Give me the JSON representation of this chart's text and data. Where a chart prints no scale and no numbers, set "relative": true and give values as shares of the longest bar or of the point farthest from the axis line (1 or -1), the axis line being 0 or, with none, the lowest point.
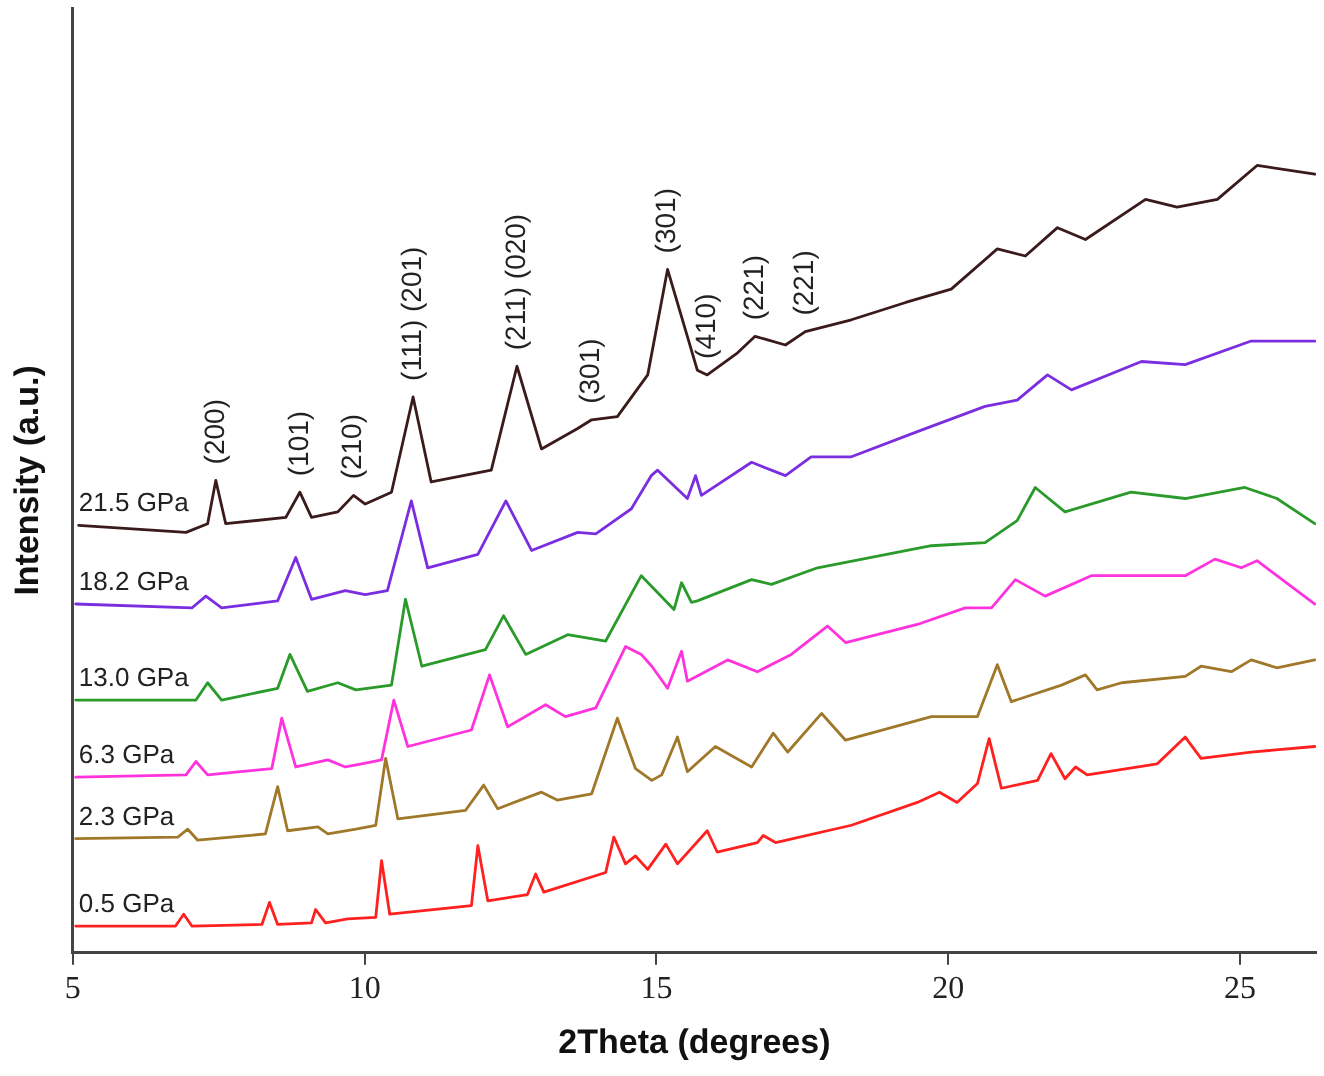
{
  "chart_data": {
    "type": "line",
    "relative": true,
    "xlabel": "2Theta (degrees)",
    "ylabel": "Intensity (a.u.)",
    "xlim": [
      5,
      26.3
    ],
    "xticks": [
      5,
      10,
      15,
      20,
      25
    ],
    "grid": false,
    "legend": false,
    "marker": "none",
    "line_style": "solid",
    "annotations": [
      {
        "text": "(200)",
        "x": 7.45,
        "y": 0.6
      },
      {
        "text": "(101)",
        "x": 8.89,
        "y": 0.585
      },
      {
        "text": "(210)",
        "x": 9.81,
        "y": 0.581
      },
      {
        "text": "(111) (201)",
        "x": 10.83,
        "y": 0.706
      },
      {
        "text": "(211) (020)",
        "x": 12.61,
        "y": 0.745
      },
      {
        "text": "(301)",
        "x": 13.89,
        "y": 0.677
      },
      {
        "text": "(301)",
        "x": 15.19,
        "y": 0.868
      },
      {
        "text": "(410)",
        "x": 15.87,
        "y": 0.734
      },
      {
        "text": "(221)",
        "x": 16.69,
        "y": 0.783
      },
      {
        "text": "(221)",
        "x": 17.55,
        "y": 0.789
      }
    ],
    "series": [
      {
        "name": "21.5 GPa",
        "color": "#3a1a1a",
        "x": [
          5.1,
          6.94,
          7.31,
          7.45,
          7.62,
          8.65,
          8.89,
          9.09,
          9.54,
          9.81,
          10.01,
          10.46,
          10.83,
          11.14,
          12.17,
          12.61,
          13.03,
          13.65,
          13.89,
          14.33,
          14.85,
          15.19,
          15.7,
          15.87,
          16.39,
          16.69,
          17.21,
          17.55,
          18.34,
          19.27,
          20.05,
          20.84,
          21.32,
          21.87,
          22.35,
          23.38,
          23.92,
          24.61,
          25.29,
          26.28
        ],
        "values": [
          0.543,
          0.534,
          0.545,
          0.6,
          0.545,
          0.553,
          0.585,
          0.553,
          0.56,
          0.581,
          0.57,
          0.585,
          0.706,
          0.598,
          0.613,
          0.745,
          0.64,
          0.666,
          0.677,
          0.681,
          0.734,
          0.868,
          0.74,
          0.734,
          0.762,
          0.783,
          0.772,
          0.789,
          0.804,
          0.826,
          0.843,
          0.894,
          0.885,
          0.921,
          0.906,
          0.957,
          0.947,
          0.957,
          1.0,
          0.989
        ]
      },
      {
        "name": "18.2 GPa",
        "color": "#7a2ee0",
        "x": [
          5.05,
          7.04,
          7.28,
          7.55,
          8.51,
          8.82,
          9.09,
          9.67,
          10.01,
          10.39,
          10.8,
          11.08,
          11.94,
          12.42,
          12.86,
          13.65,
          13.96,
          14.57,
          14.91,
          15.02,
          15.53,
          15.67,
          15.77,
          16.63,
          17.21,
          17.65,
          18.34,
          19.47,
          20.63,
          21.18,
          21.7,
          22.11,
          23.31,
          24.06,
          25.19,
          26.28
        ],
        "values": [
          0.443,
          0.438,
          0.453,
          0.438,
          0.447,
          0.502,
          0.449,
          0.46,
          0.455,
          0.46,
          0.574,
          0.489,
          0.506,
          0.574,
          0.511,
          0.534,
          0.532,
          0.564,
          0.606,
          0.613,
          0.577,
          0.606,
          0.581,
          0.623,
          0.606,
          0.63,
          0.63,
          0.662,
          0.694,
          0.702,
          0.734,
          0.715,
          0.751,
          0.747,
          0.777,
          0.777
        ]
      },
      {
        "name": "13.0 GPa",
        "color": "#2a9a2a",
        "x": [
          5.05,
          7.11,
          7.31,
          7.55,
          8.51,
          8.72,
          9.02,
          9.54,
          9.85,
          10.46,
          10.7,
          10.98,
          12.07,
          12.38,
          12.76,
          13.48,
          14.13,
          14.74,
          15.3,
          15.43,
          15.6,
          15.7,
          16.63,
          16.97,
          17.76,
          19.71,
          20.63,
          21.18,
          21.49,
          22.0,
          23.13,
          24.06,
          25.08,
          25.63,
          26.28
        ],
        "values": [
          0.321,
          0.321,
          0.343,
          0.321,
          0.336,
          0.379,
          0.332,
          0.343,
          0.334,
          0.34,
          0.449,
          0.364,
          0.385,
          0.428,
          0.379,
          0.404,
          0.396,
          0.479,
          0.436,
          0.47,
          0.445,
          0.447,
          0.474,
          0.468,
          0.489,
          0.517,
          0.521,
          0.549,
          0.591,
          0.56,
          0.585,
          0.577,
          0.591,
          0.577,
          0.545
        ]
      },
      {
        "name": "6.3 GPa",
        "color": "#ff33dd",
        "x": [
          5.05,
          6.94,
          7.11,
          7.31,
          8.41,
          8.58,
          8.82,
          9.37,
          9.67,
          9.95,
          10.29,
          10.5,
          10.74,
          11.83,
          12.14,
          12.45,
          13.1,
          13.44,
          13.96,
          14.47,
          14.74,
          14.92,
          15.19,
          15.43,
          15.53,
          16.22,
          16.73,
          17.31,
          17.93,
          18.24,
          19.47,
          20.29,
          20.74,
          21.15,
          21.66,
          22.45,
          24.06,
          24.57,
          25.02,
          25.29,
          25.63,
          26.28
        ],
        "values": [
          0.223,
          0.226,
          0.243,
          0.226,
          0.234,
          0.298,
          0.236,
          0.245,
          0.236,
          0.24,
          0.245,
          0.321,
          0.262,
          0.283,
          0.353,
          0.287,
          0.315,
          0.3,
          0.311,
          0.389,
          0.379,
          0.364,
          0.336,
          0.383,
          0.345,
          0.372,
          0.357,
          0.379,
          0.415,
          0.394,
          0.417,
          0.438,
          0.438,
          0.474,
          0.453,
          0.479,
          0.479,
          0.5,
          0.489,
          0.498,
          0.479,
          0.443
        ]
      },
      {
        "name": "2.3 GPa",
        "color": "#a0782a",
        "x": [
          5.05,
          6.8,
          6.97,
          7.14,
          8.3,
          8.51,
          8.68,
          9.2,
          9.37,
          9.85,
          10.19,
          10.36,
          10.57,
          11.73,
          12.04,
          12.28,
          13.03,
          13.3,
          13.89,
          14.33,
          14.64,
          14.92,
          15.09,
          15.36,
          15.53,
          16.01,
          16.63,
          17.0,
          17.25,
          17.83,
          18.24,
          19.71,
          20.5,
          20.84,
          21.08,
          21.94,
          22.35,
          22.55,
          22.97,
          24.06,
          24.33,
          24.85,
          25.19,
          25.63,
          26.28
        ],
        "values": [
          0.145,
          0.147,
          0.157,
          0.143,
          0.151,
          0.211,
          0.155,
          0.16,
          0.151,
          0.157,
          0.162,
          0.247,
          0.17,
          0.181,
          0.213,
          0.183,
          0.204,
          0.194,
          0.202,
          0.298,
          0.234,
          0.219,
          0.226,
          0.274,
          0.23,
          0.262,
          0.236,
          0.279,
          0.255,
          0.304,
          0.27,
          0.3,
          0.3,
          0.366,
          0.319,
          0.34,
          0.353,
          0.334,
          0.343,
          0.351,
          0.364,
          0.357,
          0.372,
          0.362,
          0.372
        ]
      },
      {
        "name": "0.5 GPa",
        "color": "#ff2020",
        "x": [
          5.05,
          6.76,
          6.9,
          7.04,
          8.24,
          8.37,
          8.51,
          9.09,
          9.16,
          9.33,
          9.71,
          10.19,
          10.29,
          10.43,
          11.83,
          11.94,
          12.11,
          12.79,
          12.93,
          13.07,
          14.13,
          14.27,
          14.47,
          14.64,
          14.85,
          15.16,
          15.36,
          15.87,
          16.04,
          16.73,
          16.83,
          17.04,
          18.34,
          19.47,
          19.85,
          20.15,
          20.5,
          20.7,
          20.91,
          21.53,
          21.76,
          22.0,
          22.18,
          22.38,
          23.58,
          24.06,
          24.33,
          25.19,
          26.28
        ],
        "values": [
          0.034,
          0.034,
          0.049,
          0.034,
          0.036,
          0.064,
          0.036,
          0.038,
          0.055,
          0.038,
          0.043,
          0.045,
          0.117,
          0.049,
          0.06,
          0.136,
          0.066,
          0.074,
          0.1,
          0.077,
          0.102,
          0.147,
          0.113,
          0.123,
          0.106,
          0.138,
          0.113,
          0.155,
          0.128,
          0.14,
          0.149,
          0.14,
          0.162,
          0.191,
          0.204,
          0.191,
          0.215,
          0.272,
          0.209,
          0.219,
          0.253,
          0.221,
          0.236,
          0.226,
          0.24,
          0.274,
          0.247,
          0.255,
          0.262
        ]
      }
    ]
  }
}
